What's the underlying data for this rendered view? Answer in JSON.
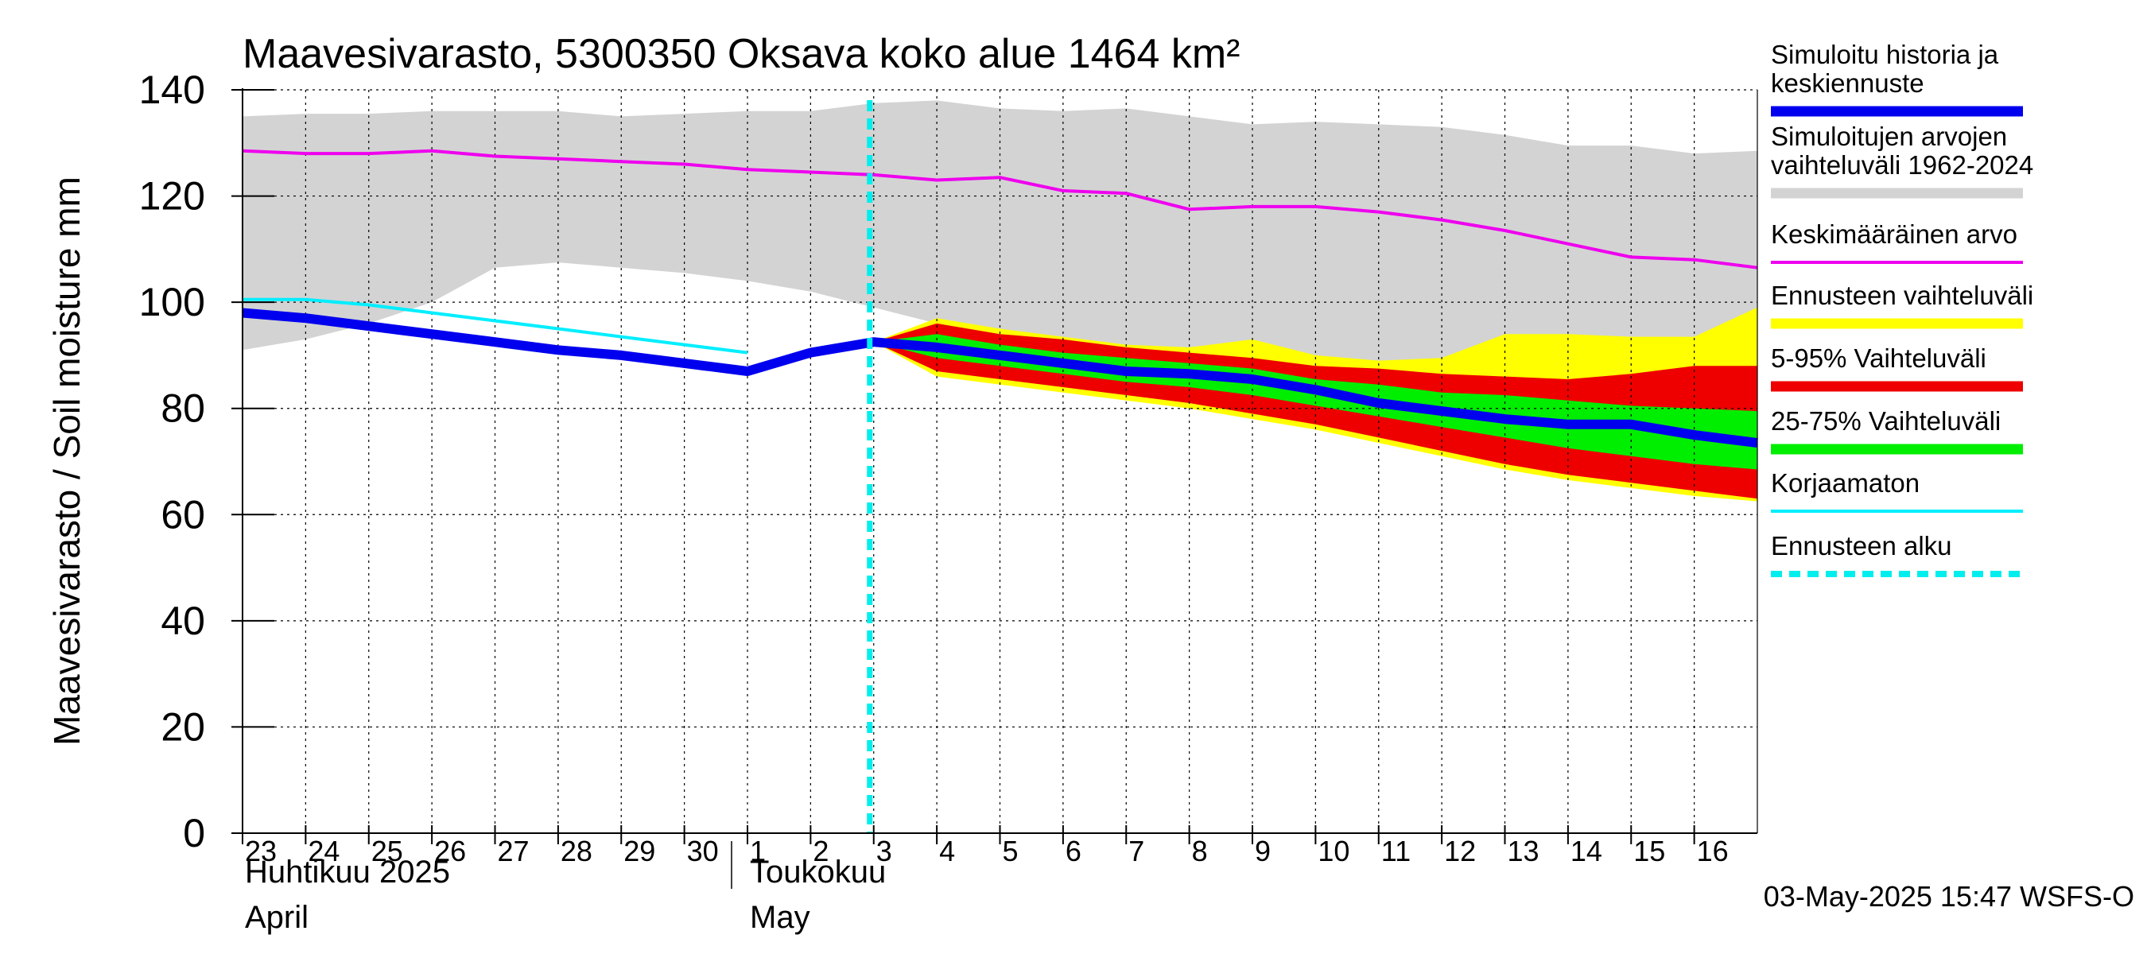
{
  "chart_data": {
    "type": "area",
    "title": "Maavesivarasto, 5300350 Oksava koko alue 1464 km²",
    "ylabel": "Maavesivarasto / Soil moisture   mm",
    "ylim": [
      0,
      140
    ],
    "yticks": [
      0,
      20,
      40,
      60,
      80,
      100,
      120,
      140
    ],
    "grid": true,
    "legend_position": "right",
    "x_range": [
      "2025-04-23",
      "2025-05-17"
    ],
    "day_labels": [
      {
        "date": "2025-04-23",
        "label": "23"
      },
      {
        "date": "2025-04-24",
        "label": "24"
      },
      {
        "date": "2025-04-25",
        "label": "25"
      },
      {
        "date": "2025-04-26",
        "label": "26"
      },
      {
        "date": "2025-04-27",
        "label": "27"
      },
      {
        "date": "2025-04-28",
        "label": "28"
      },
      {
        "date": "2025-04-29",
        "label": "29"
      },
      {
        "date": "2025-04-30",
        "label": "30"
      },
      {
        "date": "2025-05-01",
        "label": "1"
      },
      {
        "date": "2025-05-02",
        "label": "2"
      },
      {
        "date": "2025-05-03",
        "label": "3"
      },
      {
        "date": "2025-05-04",
        "label": "4"
      },
      {
        "date": "2025-05-05",
        "label": "5"
      },
      {
        "date": "2025-05-06",
        "label": "6"
      },
      {
        "date": "2025-05-07",
        "label": "7"
      },
      {
        "date": "2025-05-08",
        "label": "8"
      },
      {
        "date": "2025-05-09",
        "label": "9"
      },
      {
        "date": "2025-05-10",
        "label": "10"
      },
      {
        "date": "2025-05-11",
        "label": "11"
      },
      {
        "date": "2025-05-12",
        "label": "12"
      },
      {
        "date": "2025-05-13",
        "label": "13"
      },
      {
        "date": "2025-05-14",
        "label": "14"
      },
      {
        "date": "2025-05-15",
        "label": "15"
      },
      {
        "date": "2025-05-16",
        "label": "16"
      }
    ],
    "month_labels": [
      {
        "date": "2025-04-23",
        "line1": "Huhtikuu  2025",
        "line2": "April"
      },
      {
        "date": "2025-05-01",
        "line1": "Toukokuu",
        "line2": "May"
      }
    ],
    "forecast_start": "2025-05-03",
    "timestamp": "03-May-2025 15:47 WSFS-O",
    "colors": {
      "history": "#0000ee",
      "range_hist": "#d3d3d3",
      "mean": "#ee00ee",
      "ens_range": "#ffff00",
      "p5_95": "#ee0000",
      "p25_75": "#00ee00",
      "uncorrected": "#00eeff",
      "forecast_start": "#00eeee"
    },
    "series": [
      {
        "key": "range_hist",
        "name": "Simuloitujen arvojen vaihteluväli 1962-2024",
        "kind": "band",
        "x": [
          "2025-04-23",
          "2025-04-24",
          "2025-04-25",
          "2025-04-26",
          "2025-04-27",
          "2025-04-28",
          "2025-04-29",
          "2025-04-30",
          "2025-05-01",
          "2025-05-02",
          "2025-05-03",
          "2025-05-04",
          "2025-05-05",
          "2025-05-06",
          "2025-05-07",
          "2025-05-08",
          "2025-05-09",
          "2025-05-10",
          "2025-05-11",
          "2025-05-12",
          "2025-05-13",
          "2025-05-14",
          "2025-05-15",
          "2025-05-16",
          "2025-05-17"
        ],
        "low": [
          91,
          93,
          96,
          100,
          106.5,
          107.5,
          106.5,
          105.5,
          104,
          102,
          99,
          96,
          94,
          92,
          90,
          88,
          86,
          84,
          83,
          82,
          81.5,
          81,
          80.5,
          80,
          80
        ],
        "high": [
          135,
          135.5,
          135.5,
          136,
          136,
          136,
          135,
          135.5,
          136,
          136,
          137.5,
          138,
          136.5,
          136,
          136.5,
          135,
          133.5,
          134,
          133.5,
          133,
          131.5,
          129.5,
          129.5,
          128,
          128.5
        ]
      },
      {
        "key": "ens_range",
        "name": "Ennusteen vaihteluväli",
        "kind": "band",
        "x": [
          "2025-05-03",
          "2025-05-04",
          "2025-05-05",
          "2025-05-06",
          "2025-05-07",
          "2025-05-08",
          "2025-05-09",
          "2025-05-10",
          "2025-05-11",
          "2025-05-12",
          "2025-05-13",
          "2025-05-14",
          "2025-05-15",
          "2025-05-16",
          "2025-05-17"
        ],
        "low": [
          92.5,
          86,
          84.5,
          83,
          81.5,
          80,
          78,
          76,
          73.5,
          71,
          68.5,
          66.5,
          65,
          63.5,
          62.5
        ],
        "high": [
          92.5,
          97,
          95,
          93.5,
          92,
          91.5,
          93,
          90,
          89,
          89.5,
          94,
          94,
          93.5,
          93.5,
          99
        ]
      },
      {
        "key": "p5_95",
        "name": "5-95% Vaihteluväli",
        "kind": "band",
        "x": [
          "2025-05-03",
          "2025-05-04",
          "2025-05-05",
          "2025-05-06",
          "2025-05-07",
          "2025-05-08",
          "2025-05-09",
          "2025-05-10",
          "2025-05-11",
          "2025-05-12",
          "2025-05-13",
          "2025-05-14",
          "2025-05-15",
          "2025-05-16",
          "2025-05-17"
        ],
        "low": [
          92.5,
          87,
          85.5,
          84,
          82.5,
          81,
          79,
          77,
          74.5,
          72,
          69.5,
          67.5,
          66,
          64.5,
          63
        ],
        "high": [
          92.5,
          96,
          94,
          93,
          91.5,
          90.5,
          89.5,
          88,
          87.5,
          86.5,
          86,
          85.5,
          86.5,
          88,
          88
        ]
      },
      {
        "key": "p25_75",
        "name": "25-75% Vaihteluväli",
        "kind": "band",
        "x": [
          "2025-05-03",
          "2025-05-04",
          "2025-05-05",
          "2025-05-06",
          "2025-05-07",
          "2025-05-08",
          "2025-05-09",
          "2025-05-10",
          "2025-05-11",
          "2025-05-12",
          "2025-05-13",
          "2025-05-14",
          "2025-05-15",
          "2025-05-16",
          "2025-05-17"
        ],
        "low": [
          92.5,
          89.5,
          88,
          86.5,
          85,
          84,
          82.5,
          80.5,
          78.5,
          76.5,
          74.5,
          72.5,
          71,
          69.5,
          68.5
        ],
        "high": [
          92.5,
          94,
          92,
          90.5,
          89.5,
          88.5,
          87.5,
          85.5,
          84.5,
          83,
          82.5,
          81.5,
          80.5,
          80,
          79.5
        ]
      },
      {
        "key": "mean",
        "name": "Keskimääräinen arvo",
        "kind": "line",
        "width": 4,
        "x": [
          "2025-04-23",
          "2025-04-24",
          "2025-04-25",
          "2025-04-26",
          "2025-04-27",
          "2025-04-28",
          "2025-04-29",
          "2025-04-30",
          "2025-05-01",
          "2025-05-02",
          "2025-05-03",
          "2025-05-04",
          "2025-05-05",
          "2025-05-06",
          "2025-05-07",
          "2025-05-08",
          "2025-05-09",
          "2025-05-10",
          "2025-05-11",
          "2025-05-12",
          "2025-05-13",
          "2025-05-14",
          "2025-05-15",
          "2025-05-16",
          "2025-05-17"
        ],
        "y": [
          128.5,
          128,
          128,
          128.5,
          127.5,
          127,
          126.5,
          126,
          125,
          124.5,
          124,
          123,
          123.5,
          121,
          120.5,
          117.5,
          118,
          118,
          117,
          115.5,
          113.5,
          111,
          108.5,
          108,
          106.5
        ]
      },
      {
        "key": "uncorrected",
        "name": "Korjaamaton",
        "kind": "line",
        "width": 4,
        "x": [
          "2025-04-23",
          "2025-04-24",
          "2025-04-25",
          "2025-04-26",
          "2025-04-27",
          "2025-04-28",
          "2025-04-29",
          "2025-04-30",
          "2025-05-01"
        ],
        "y": [
          100.5,
          100.5,
          99.5,
          98,
          96.5,
          95,
          93.5,
          92,
          90.5
        ]
      },
      {
        "key": "history",
        "name": "Simuloitu historia ja keskiennuste",
        "kind": "line",
        "width": 12,
        "x": [
          "2025-04-23",
          "2025-04-24",
          "2025-04-25",
          "2025-04-26",
          "2025-04-27",
          "2025-04-28",
          "2025-04-29",
          "2025-04-30",
          "2025-05-01",
          "2025-05-02",
          "2025-05-03",
          "2025-05-04",
          "2025-05-05",
          "2025-05-06",
          "2025-05-07",
          "2025-05-08",
          "2025-05-09",
          "2025-05-10",
          "2025-05-11",
          "2025-05-12",
          "2025-05-13",
          "2025-05-14",
          "2025-05-15",
          "2025-05-16",
          "2025-05-17"
        ],
        "y": [
          98,
          97,
          95.5,
          94,
          92.5,
          91,
          90,
          88.5,
          87,
          90.5,
          92.5,
          91.5,
          90,
          88.5,
          87,
          86.5,
          85.5,
          83.5,
          81,
          79.5,
          78,
          77,
          77,
          75,
          73.5
        ]
      }
    ],
    "legend": [
      {
        "key": "history",
        "lines": [
          "Simuloitu historia ja",
          "keskiennuste"
        ],
        "style": "thick"
      },
      {
        "key": "range_hist",
        "lines": [
          "Simuloitujen arvojen",
          "vaihteluväli 1962-2024"
        ],
        "style": "medium"
      },
      {
        "key": "mean",
        "lines": [
          "Keskimääräinen arvo"
        ],
        "style": "thin"
      },
      {
        "key": "ens_range",
        "lines": [
          "Ennusteen vaihteluväli"
        ],
        "style": "medium"
      },
      {
        "key": "p5_95",
        "lines": [
          "5-95% Vaihteluväli"
        ],
        "style": "medium"
      },
      {
        "key": "p25_75",
        "lines": [
          "25-75% Vaihteluväli"
        ],
        "style": "medium"
      },
      {
        "key": "uncorrected",
        "lines": [
          "Korjaamaton"
        ],
        "style": "thin"
      },
      {
        "key": "forecast_start",
        "lines": [
          "Ennusteen alku"
        ],
        "style": "dashed"
      }
    ]
  }
}
